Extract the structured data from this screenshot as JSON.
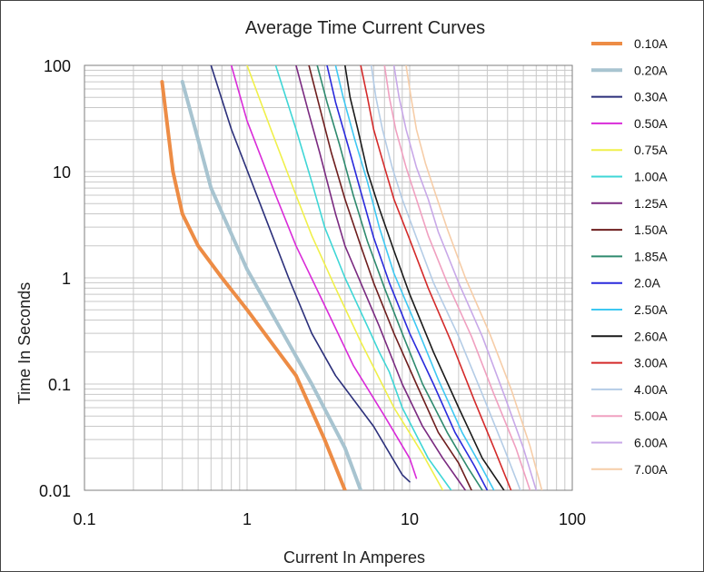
{
  "chart_data": {
    "type": "line",
    "title": "Average Time Current Curves",
    "xlabel": "Current In Amperes",
    "ylabel": "Time In Seconds",
    "x_scale": "log",
    "y_scale": "log",
    "xlim": [
      0.1,
      100
    ],
    "ylim": [
      0.01,
      100
    ],
    "x_ticks": [
      "0.1",
      "1",
      "10",
      "100"
    ],
    "y_ticks": [
      "0.01",
      "0.1",
      "1",
      "10",
      "100"
    ],
    "grid": true,
    "legend_position": "right",
    "series": [
      {
        "name": "0.10A",
        "color": "#ED8C45",
        "width": 4,
        "points": [
          [
            0.3,
            70
          ],
          [
            0.35,
            10
          ],
          [
            0.4,
            4
          ],
          [
            0.5,
            2
          ],
          [
            0.7,
            1
          ],
          [
            1.0,
            0.5
          ],
          [
            2.0,
            0.12
          ],
          [
            3.0,
            0.03
          ],
          [
            4.0,
            0.01
          ]
        ]
      },
      {
        "name": "0.20A",
        "color": "#A8C4D0",
        "width": 4,
        "points": [
          [
            0.4,
            70
          ],
          [
            0.5,
            20
          ],
          [
            0.6,
            7
          ],
          [
            1.0,
            1.2
          ],
          [
            1.5,
            0.4
          ],
          [
            2.5,
            0.1
          ],
          [
            4.0,
            0.025
          ],
          [
            5.0,
            0.01
          ]
        ]
      },
      {
        "name": "0.30A",
        "color": "#2B2F7A",
        "width": 1.6,
        "points": [
          [
            0.6,
            100
          ],
          [
            0.8,
            25
          ],
          [
            1.2,
            5
          ],
          [
            1.8,
            1.0
          ],
          [
            2.5,
            0.3
          ],
          [
            3.5,
            0.12
          ],
          [
            6.0,
            0.04
          ],
          [
            9.0,
            0.014
          ],
          [
            10.0,
            0.012
          ]
        ]
      },
      {
        "name": "0.50A",
        "color": "#D92BD9",
        "width": 1.6,
        "points": [
          [
            0.8,
            100
          ],
          [
            1.0,
            30
          ],
          [
            1.5,
            6
          ],
          [
            2.0,
            2.0
          ],
          [
            3.0,
            0.55
          ],
          [
            4.5,
            0.15
          ],
          [
            7.0,
            0.05
          ],
          [
            10.0,
            0.02
          ],
          [
            11.0,
            0.013
          ]
        ]
      },
      {
        "name": "0.75A",
        "color": "#F0F04A",
        "width": 1.6,
        "points": [
          [
            1.0,
            100
          ],
          [
            1.4,
            25
          ],
          [
            2.0,
            6
          ],
          [
            2.5,
            2.5
          ],
          [
            3.5,
            0.8
          ],
          [
            5.0,
            0.25
          ],
          [
            8.0,
            0.06
          ],
          [
            12.0,
            0.022
          ],
          [
            16.0,
            0.01
          ]
        ]
      },
      {
        "name": "1.00A",
        "color": "#3ED6D6",
        "width": 1.6,
        "points": [
          [
            1.5,
            100
          ],
          [
            2.0,
            25
          ],
          [
            2.5,
            8
          ],
          [
            3.0,
            3.0
          ],
          [
            4.0,
            1.0
          ],
          [
            5.5,
            0.35
          ],
          [
            6.5,
            0.2
          ],
          [
            7.5,
            0.13
          ],
          [
            9.0,
            0.06
          ],
          [
            13.0,
            0.02
          ],
          [
            18.0,
            0.01
          ]
        ]
      },
      {
        "name": "1.25A",
        "color": "#7A2A80",
        "width": 1.6,
        "points": [
          [
            2.0,
            100
          ],
          [
            2.4,
            35
          ],
          [
            2.8,
            15
          ],
          [
            3.5,
            4
          ],
          [
            4.0,
            2.0
          ],
          [
            5.0,
            0.9
          ],
          [
            6.5,
            0.35
          ],
          [
            9.0,
            0.1
          ],
          [
            12.0,
            0.04
          ],
          [
            16.0,
            0.02
          ],
          [
            22.0,
            0.01
          ]
        ]
      },
      {
        "name": "1.50A",
        "color": "#6E1E1E",
        "width": 1.6,
        "points": [
          [
            2.4,
            100
          ],
          [
            2.8,
            40
          ],
          [
            3.3,
            15
          ],
          [
            4.0,
            5.5
          ],
          [
            5.0,
            2.0
          ],
          [
            6.0,
            0.9
          ],
          [
            8.0,
            0.3
          ],
          [
            11.0,
            0.1
          ],
          [
            15.0,
            0.035
          ],
          [
            20.0,
            0.018
          ],
          [
            24.0,
            0.01
          ]
        ]
      },
      {
        "name": "1.85A",
        "color": "#2E8A6E",
        "width": 1.6,
        "points": [
          [
            2.7,
            100
          ],
          [
            3.1,
            45
          ],
          [
            3.7,
            18
          ],
          [
            4.5,
            6
          ],
          [
            5.5,
            2.2
          ],
          [
            7.0,
            0.8
          ],
          [
            9.0,
            0.3
          ],
          [
            12.0,
            0.1
          ],
          [
            17.0,
            0.035
          ],
          [
            23.0,
            0.016
          ],
          [
            28.0,
            0.01
          ]
        ]
      },
      {
        "name": "2.0A",
        "color": "#2A2ADC",
        "width": 1.6,
        "points": [
          [
            3.1,
            100
          ],
          [
            3.5,
            45
          ],
          [
            4.2,
            17
          ],
          [
            5.0,
            6.5
          ],
          [
            6.0,
            2.4
          ],
          [
            7.5,
            0.9
          ],
          [
            10.0,
            0.3
          ],
          [
            14.0,
            0.1
          ],
          [
            19.0,
            0.035
          ],
          [
            25.0,
            0.017
          ],
          [
            30.0,
            0.01
          ]
        ]
      },
      {
        "name": "2.50A",
        "color": "#3EC8F2",
        "width": 1.6,
        "points": [
          [
            3.5,
            100
          ],
          [
            3.9,
            50
          ],
          [
            4.6,
            20
          ],
          [
            5.5,
            8
          ],
          [
            6.5,
            3.0
          ],
          [
            8.0,
            1.1
          ],
          [
            11.0,
            0.35
          ],
          [
            15.0,
            0.11
          ],
          [
            21.0,
            0.035
          ],
          [
            28.0,
            0.016
          ],
          [
            33.0,
            0.01
          ]
        ]
      },
      {
        "name": "2.60A",
        "color": "#1A1A1A",
        "width": 1.6,
        "points": [
          [
            4.0,
            100
          ],
          [
            4.3,
            50
          ],
          [
            4.8,
            25
          ],
          [
            5.5,
            10
          ],
          [
            6.5,
            4.5
          ],
          [
            8.0,
            1.8
          ],
          [
            10.0,
            0.7
          ],
          [
            14.0,
            0.2
          ],
          [
            20.0,
            0.06
          ],
          [
            28.0,
            0.02
          ],
          [
            38.0,
            0.01
          ]
        ]
      },
      {
        "name": "3.00A",
        "color": "#D42A2A",
        "width": 1.6,
        "points": [
          [
            5.0,
            100
          ],
          [
            5.5,
            50
          ],
          [
            6.0,
            25
          ],
          [
            7.0,
            11
          ],
          [
            8.0,
            5.5
          ],
          [
            10.0,
            2.3
          ],
          [
            13.0,
            0.8
          ],
          [
            18.0,
            0.25
          ],
          [
            25.0,
            0.07
          ],
          [
            33.0,
            0.025
          ],
          [
            42.0,
            0.01
          ]
        ]
      },
      {
        "name": "4.00A",
        "color": "#B4CCE6",
        "width": 1.6,
        "points": [
          [
            5.8,
            100
          ],
          [
            6.2,
            50
          ],
          [
            6.8,
            25
          ],
          [
            7.8,
            11
          ],
          [
            9.0,
            5.5
          ],
          [
            11.0,
            2.4
          ],
          [
            14.0,
            0.9
          ],
          [
            20.0,
            0.28
          ],
          [
            28.0,
            0.08
          ],
          [
            38.0,
            0.025
          ],
          [
            48.0,
            0.01
          ]
        ]
      },
      {
        "name": "5.00A",
        "color": "#F0A0C0",
        "width": 1.6,
        "points": [
          [
            7.0,
            100
          ],
          [
            7.5,
            50
          ],
          [
            8.2,
            25
          ],
          [
            9.5,
            11
          ],
          [
            11.0,
            5.5
          ],
          [
            13.0,
            2.5
          ],
          [
            17.0,
            0.9
          ],
          [
            24.0,
            0.28
          ],
          [
            33.0,
            0.08
          ],
          [
            45.0,
            0.025
          ],
          [
            55.0,
            0.01
          ]
        ]
      },
      {
        "name": "6.00A",
        "color": "#C8A8E8",
        "width": 1.6,
        "points": [
          [
            8.0,
            100
          ],
          [
            8.6,
            50
          ],
          [
            9.5,
            25
          ],
          [
            11.0,
            11
          ],
          [
            13.0,
            5.5
          ],
          [
            15.0,
            2.7
          ],
          [
            20.0,
            0.9
          ],
          [
            28.0,
            0.28
          ],
          [
            38.0,
            0.08
          ],
          [
            50.0,
            0.025
          ],
          [
            60.0,
            0.01
          ]
        ]
      },
      {
        "name": "7.00A",
        "color": "#F6CDA8",
        "width": 1.6,
        "points": [
          [
            9.5,
            100
          ],
          [
            10.2,
            50
          ],
          [
            11.0,
            25
          ],
          [
            12.5,
            12
          ],
          [
            14.5,
            6
          ],
          [
            17.0,
            2.9
          ],
          [
            22.0,
            1.0
          ],
          [
            31.0,
            0.3
          ],
          [
            42.0,
            0.09
          ],
          [
            55.0,
            0.026
          ],
          [
            65.0,
            0.01
          ]
        ]
      }
    ]
  }
}
